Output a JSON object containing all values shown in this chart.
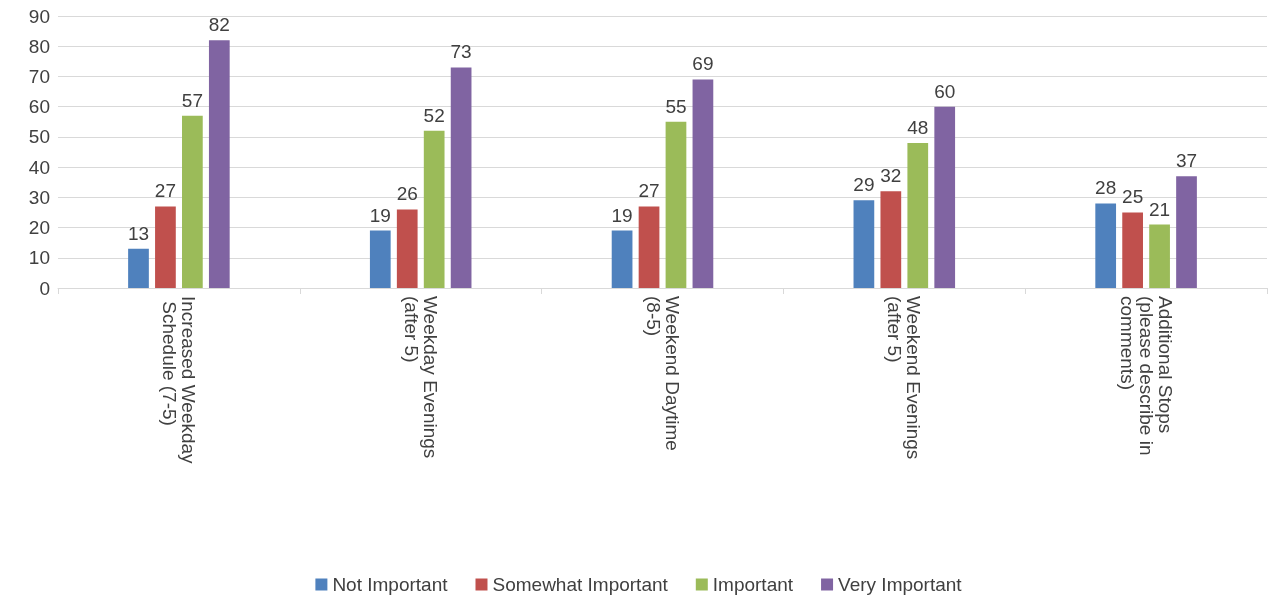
{
  "chart_data": {
    "type": "bar",
    "categories": [
      "Increased Weekday Schedule (7-5)",
      "Weekday Evenings (after 5)",
      "Weekend Daytime (8-5)",
      "Weekend Evenings (after 5)",
      "Additional Stops (please describe in comments)"
    ],
    "series": [
      {
        "name": "Not Important",
        "color": "#4f81bd",
        "values": [
          13,
          19,
          19,
          29,
          28
        ]
      },
      {
        "name": "Somewhat Important",
        "color": "#c0504d",
        "values": [
          27,
          26,
          27,
          32,
          25
        ]
      },
      {
        "name": "Important",
        "color": "#9bbb59",
        "values": [
          57,
          52,
          55,
          48,
          21
        ]
      },
      {
        "name": "Very Important",
        "color": "#8064a2",
        "values": [
          82,
          73,
          69,
          60,
          37
        ]
      }
    ],
    "ylim": [
      0,
      90
    ],
    "yticks": [
      0,
      10,
      20,
      30,
      40,
      50,
      60,
      70,
      80,
      90
    ],
    "grid": "y",
    "legend": "bottom",
    "data_labels": true
  }
}
